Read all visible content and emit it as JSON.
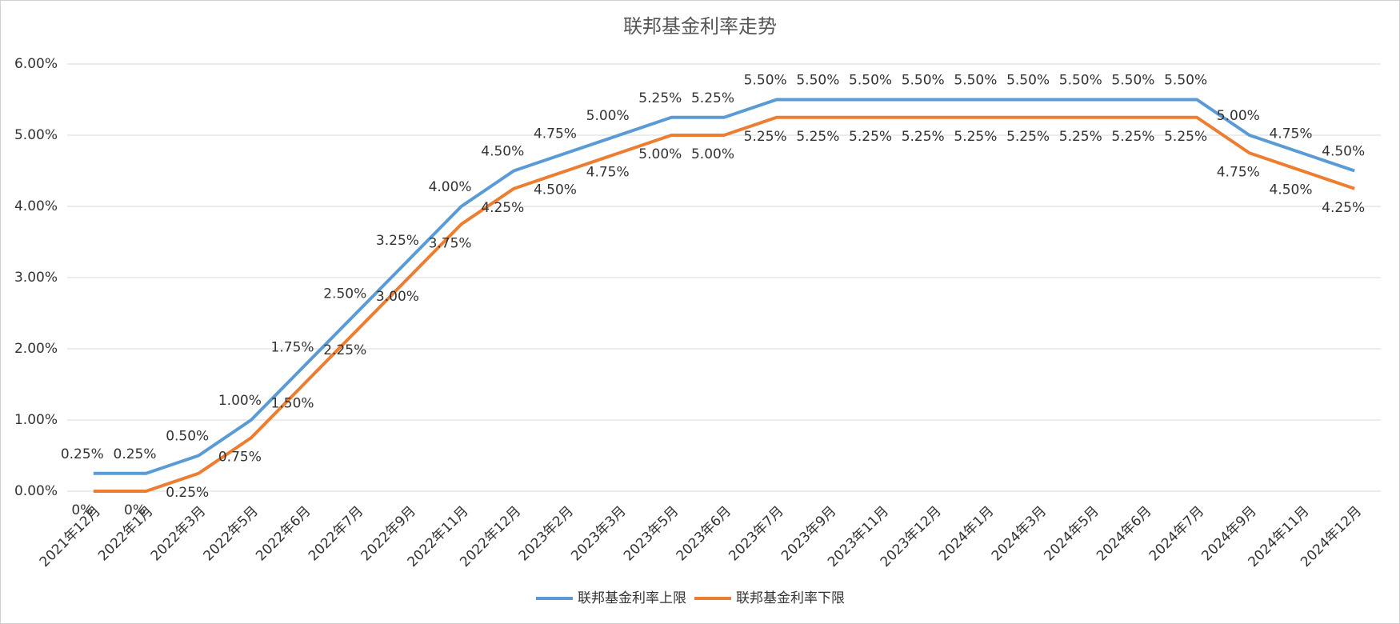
{
  "chart_data": {
    "type": "line",
    "title": "联邦基金利率走势",
    "categories": [
      "2021年12月",
      "2022年1月",
      "2022年3月",
      "2022年5月",
      "2022年6月",
      "2022年7月",
      "2022年9月",
      "2022年11月",
      "2022年12月",
      "2023年2月",
      "2023年3月",
      "2023年5月",
      "2023年6月",
      "2023年7月",
      "2023年9月",
      "2023年11月",
      "2023年12月",
      "2024年1月",
      "2024年3月",
      "2024年5月",
      "2024年6月",
      "2024年7月",
      "2024年9月",
      "2024年11月",
      "2024年12月"
    ],
    "series": [
      {
        "name": "联邦基金利率上限",
        "color": "#5b9bd5",
        "values": [
          0.25,
          0.25,
          0.5,
          1,
          1.75,
          2.5,
          3.25,
          4,
          4.5,
          4.75,
          5,
          5.25,
          5.25,
          5.5,
          5.5,
          5.5,
          5.5,
          5.5,
          5.5,
          5.5,
          5.5,
          5.5,
          5,
          4.75,
          4.5
        ],
        "value_labels": [
          "0.25%",
          "0.25%",
          "0.50%",
          "1.00%",
          "1.75%",
          "2.50%",
          "3.25%",
          "4.00%",
          "4.50%",
          "4.75%",
          "5.00%",
          "5.25%",
          "5.25%",
          "5.50%",
          "5.50%",
          "5.50%",
          "5.50%",
          "5.50%",
          "5.50%",
          "5.50%",
          "5.50%",
          "5.50%",
          "5.00%",
          "4.75%",
          "4.50%"
        ]
      },
      {
        "name": "联邦基金利率下限",
        "color": "#ed7d31",
        "values": [
          0,
          0,
          0.25,
          0.75,
          1.5,
          2.25,
          3,
          3.75,
          4.25,
          4.5,
          4.75,
          5,
          5,
          5.25,
          5.25,
          5.25,
          5.25,
          5.25,
          5.25,
          5.25,
          5.25,
          5.25,
          4.75,
          4.5,
          4.25
        ],
        "value_labels": [
          "0%",
          "0%",
          "0.25%",
          "0.75%",
          "1.50%",
          "2.25%",
          "3.00%",
          "3.75%",
          "4.25%",
          "4.50%",
          "4.75%",
          "5.00%",
          "5.00%",
          "5.25%",
          "5.25%",
          "5.25%",
          "5.25%",
          "5.25%",
          "5.25%",
          "5.25%",
          "5.25%",
          "5.25%",
          "4.75%",
          "4.50%",
          "4.25%"
        ]
      }
    ],
    "ylim": [
      0,
      6
    ],
    "yticks": [
      {
        "value": 0,
        "label": "0.00%"
      },
      {
        "value": 1,
        "label": "1.00%"
      },
      {
        "value": 2,
        "label": "2.00%"
      },
      {
        "value": 3,
        "label": "3.00%"
      },
      {
        "value": 4,
        "label": "4.00%"
      },
      {
        "value": 5,
        "label": "5.00%"
      },
      {
        "value": 6,
        "label": "6.00%"
      }
    ],
    "grid": true,
    "legend": "bottom"
  }
}
